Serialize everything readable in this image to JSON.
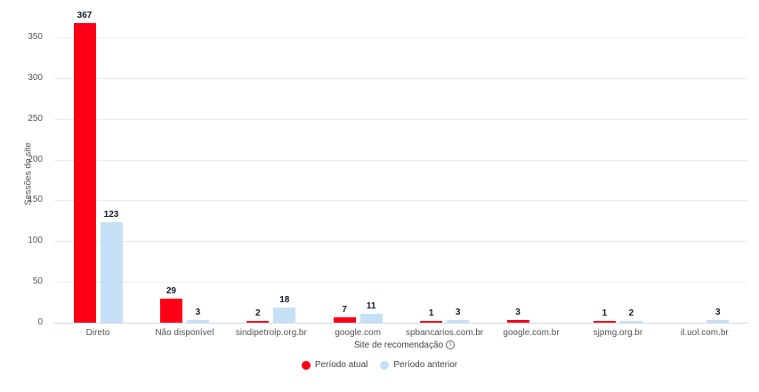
{
  "chart_data": {
    "type": "bar",
    "title": "",
    "xlabel": "Site de recomendação",
    "ylabel": "Sessões do site",
    "ylim": [
      0,
      350
    ],
    "yticks": [
      0,
      50,
      100,
      150,
      200,
      250,
      300,
      350
    ],
    "grid": true,
    "legend_position": "bottom",
    "categories": [
      "Direto",
      "Não disponível",
      "sindipetrolp.org.br",
      "google.com",
      "spbancarios.com.br",
      "google.com.br",
      "sjpmg.org.br",
      "il.uol.com.br"
    ],
    "series": [
      {
        "name": "Período atual",
        "color": "#ff0016",
        "values": [
          367,
          29,
          2,
          7,
          1,
          3,
          1,
          null
        ]
      },
      {
        "name": "Período anterior",
        "color": "#c6e0f8",
        "values": [
          123,
          3,
          18,
          11,
          3,
          null,
          2,
          3
        ]
      }
    ]
  },
  "axis": {
    "y_title": "Sessões do site",
    "x_title": "Site de recomendação",
    "x_info_icon": "info-circle-icon"
  },
  "legend": {
    "items": [
      {
        "label": "Período atual",
        "color": "#ff0016"
      },
      {
        "label": "Período anterior",
        "color": "#c6e0f8"
      }
    ]
  }
}
